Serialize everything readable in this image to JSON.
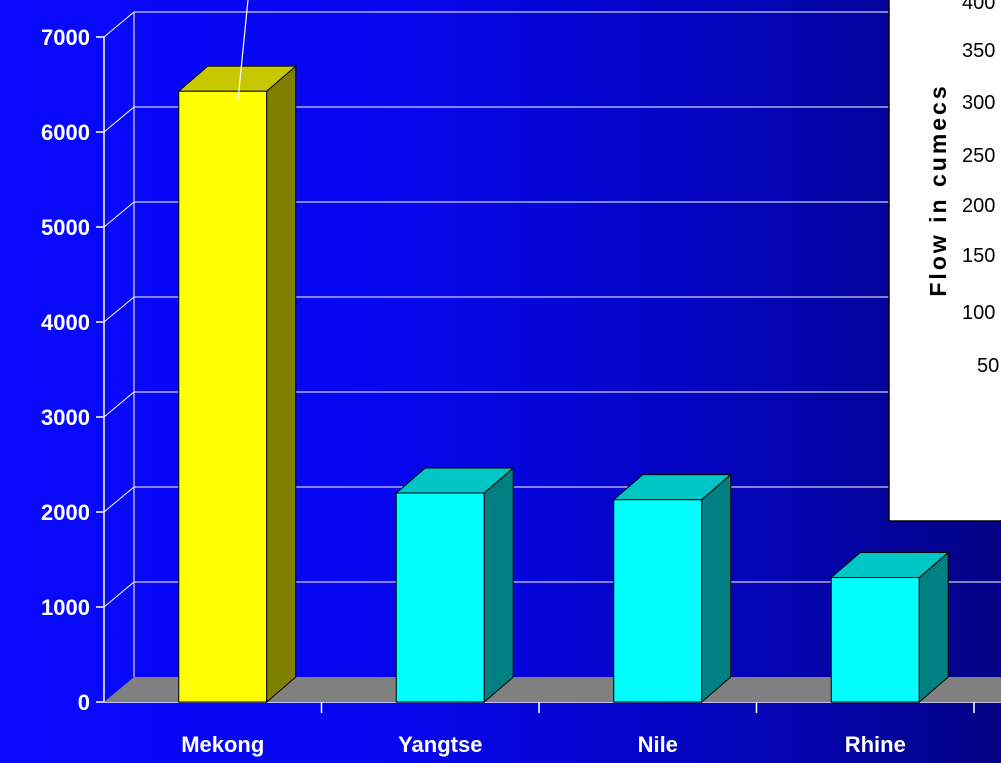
{
  "chart_data": {
    "type": "bar",
    "categories": [
      "Mekong",
      "Yangtse",
      "Nile",
      "Rhine"
    ],
    "values": [
      6430,
      2200,
      2130,
      1310
    ],
    "ylim": [
      0,
      7000
    ],
    "yticks": [
      "0",
      "1000",
      "2000",
      "3000",
      "4000",
      "5000",
      "6000",
      "7000"
    ],
    "grid": true,
    "three_d": true,
    "colors": {
      "highlight_front": "#ffff00",
      "highlight_side": "#808000",
      "highlight_top": "#c8c800",
      "bar_front": "#00ffff",
      "bar_side": "#008080",
      "bar_top": "#00c6c6",
      "floor": "#808080",
      "gridline": "#ffffff"
    },
    "highlight_index": 0
  },
  "inset": {
    "ylabel": "Flow in cumecs",
    "tick_labels": [
      "400",
      "350",
      "300",
      "250",
      "200",
      "150",
      "100",
      "50"
    ]
  }
}
